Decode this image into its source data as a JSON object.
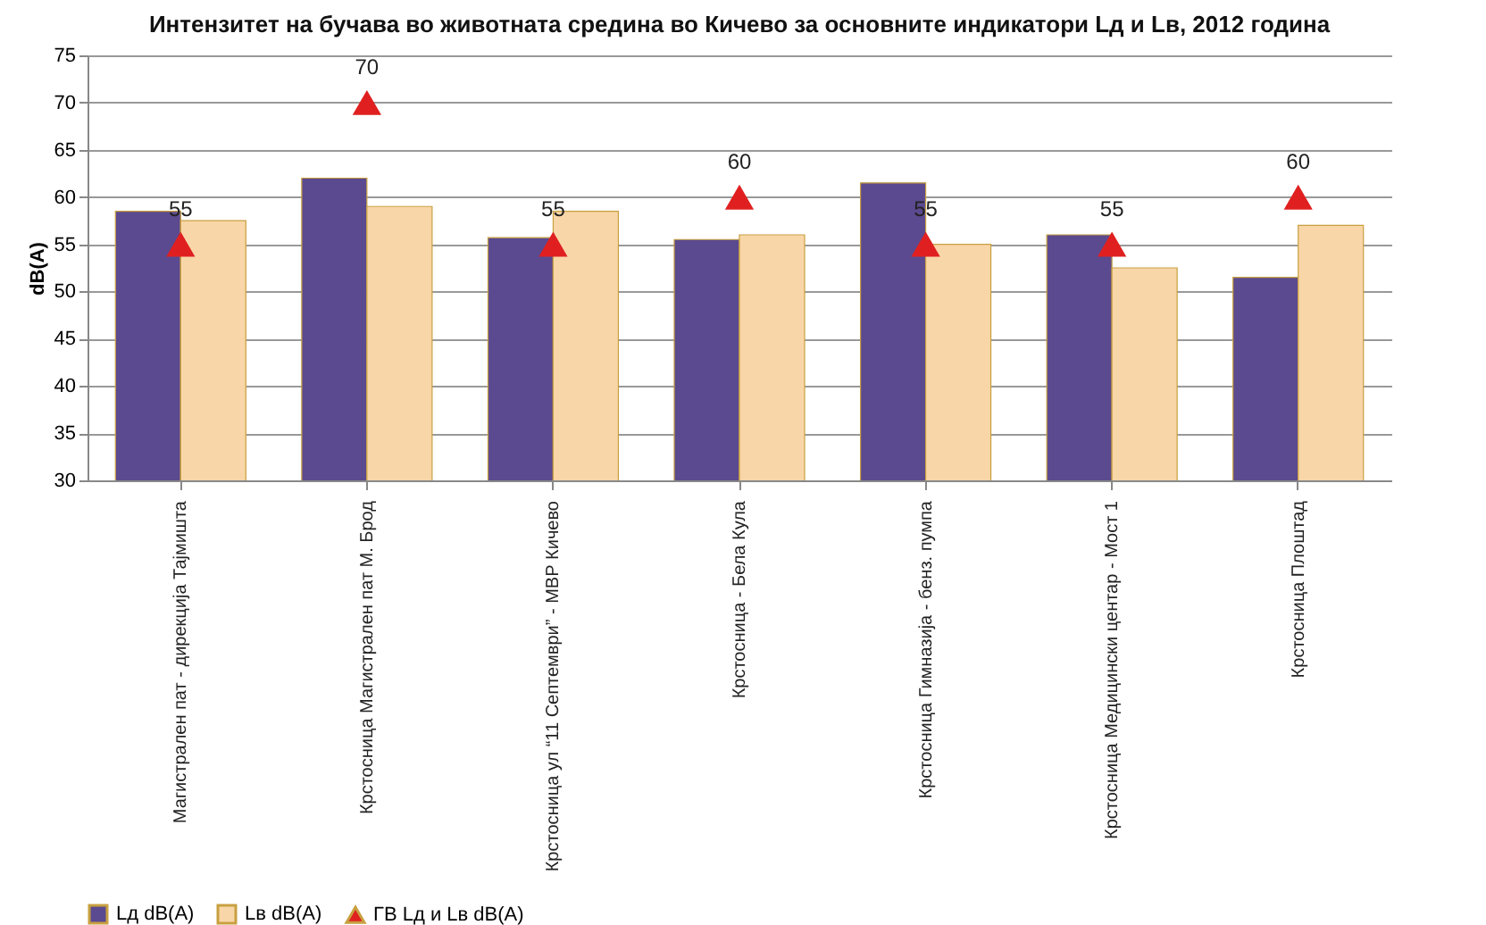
{
  "chart_data": {
    "type": "bar",
    "title": "Интензитет на бучава во животната средина во Кичево за основните индикатори Lд и Lв, 2012 година",
    "ylabel": "dB(A)",
    "categories": [
      "Магистрален пат - дирекција Тајмишта",
      "Крстосница Магистрален пат М. Брод",
      "Крстосница ул “11 Септември” - МВР Кичево",
      "Крстосница - Бела Кула",
      "Крстосница Гимназија - бенз. пумпа",
      "Крстосница Медицински центар - Мост 1",
      "Крстосница Плоштад"
    ],
    "series": [
      {
        "name": "Lд dB(A)",
        "type": "bar",
        "color": "#5b4a8f",
        "values": [
          58.5,
          62,
          55.7,
          55.5,
          61.5,
          56,
          51.5
        ]
      },
      {
        "name": "Lв dB(A)",
        "type": "bar",
        "color": "#f8d6a8",
        "values": [
          57.5,
          59,
          58.5,
          56,
          55,
          52.5,
          57
        ]
      },
      {
        "name": "ГВ Lд и Lв dB(A)",
        "type": "scatter",
        "marker": "triangle",
        "color": "#e02020",
        "values": [
          55,
          70,
          55,
          60,
          55,
          55,
          60
        ],
        "value_labels": [
          "55",
          "70",
          "55",
          "60",
          "55",
          "55",
          "60"
        ]
      }
    ],
    "ylim": [
      30,
      75
    ],
    "yticks": [
      30,
      35,
      40,
      45,
      50,
      55,
      60,
      65,
      70,
      75
    ],
    "grid": "y",
    "legend": "bottom"
  }
}
